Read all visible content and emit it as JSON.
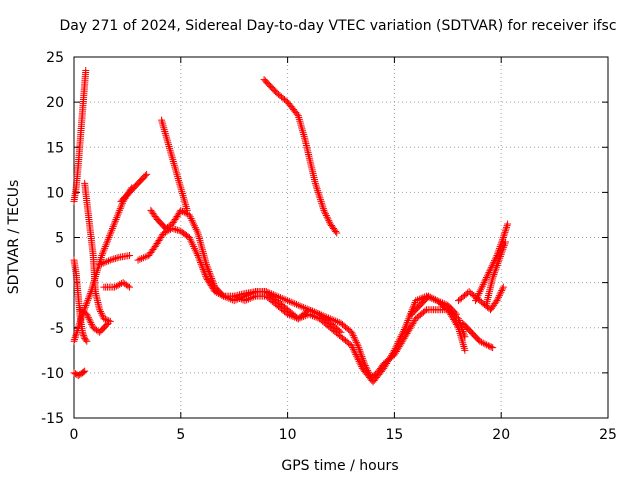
{
  "chart_data": {
    "type": "scatter",
    "title": "Day 271 of 2024, Sidereal Day-to-day VTEC variation (SDTVAR) for receiver ifsc",
    "xlabel": "GPS time / hours",
    "ylabel": "SDTVAR / TECUs",
    "xlim": [
      0,
      25
    ],
    "ylim": [
      -15,
      25
    ],
    "xticks": [
      "0",
      "5",
      "10",
      "15",
      "20",
      "25"
    ],
    "yticks": [
      "-15",
      "-10",
      "-5",
      "0",
      "5",
      "10",
      "15",
      "20",
      "25"
    ],
    "grid": true,
    "marker": "+",
    "series_color": "#ff0000",
    "tracks": [
      [
        [
          0.0,
          9.0
        ],
        [
          0.1,
          10.5
        ],
        [
          0.2,
          13.0
        ],
        [
          0.3,
          16.0
        ],
        [
          0.4,
          19.0
        ],
        [
          0.5,
          22.0
        ],
        [
          0.55,
          23.5
        ]
      ],
      [
        [
          0.0,
          2.5
        ],
        [
          0.1,
          1.0
        ],
        [
          0.2,
          -1.5
        ],
        [
          0.3,
          -4.0
        ],
        [
          0.4,
          -5.5
        ],
        [
          0.5,
          -6.2
        ],
        [
          0.6,
          -6.5
        ]
      ],
      [
        [
          0.0,
          -10.0
        ],
        [
          0.2,
          -10.3
        ],
        [
          0.4,
          -10.0
        ],
        [
          0.5,
          -9.8
        ]
      ],
      [
        [
          0.5,
          11.0
        ],
        [
          0.7,
          7.0
        ],
        [
          0.9,
          3.0
        ],
        [
          1.0,
          -1.0
        ],
        [
          1.2,
          -3.0
        ],
        [
          1.4,
          -4.0
        ],
        [
          1.7,
          -4.3
        ]
      ],
      [
        [
          0.0,
          -6.5
        ],
        [
          0.4,
          -3.5
        ],
        [
          0.8,
          -1.0
        ],
        [
          1.3,
          3.0
        ],
        [
          1.8,
          6.0
        ],
        [
          2.3,
          9.0
        ],
        [
          2.7,
          10.5
        ]
      ],
      [
        [
          0.3,
          -3.0
        ],
        [
          0.6,
          -3.5
        ],
        [
          0.9,
          -5.0
        ],
        [
          1.2,
          -5.5
        ],
        [
          1.6,
          -4.5
        ]
      ],
      [
        [
          1.2,
          2.0
        ],
        [
          1.7,
          2.5
        ],
        [
          2.1,
          2.8
        ],
        [
          2.6,
          3.0
        ]
      ],
      [
        [
          1.4,
          -0.5
        ],
        [
          1.9,
          -0.5
        ],
        [
          2.3,
          0.0
        ],
        [
          2.6,
          -0.5
        ]
      ],
      [
        [
          2.2,
          9.0
        ],
        [
          2.6,
          10.0
        ],
        [
          3.0,
          11.0
        ],
        [
          3.4,
          12.0
        ]
      ],
      [
        [
          3.0,
          2.5
        ],
        [
          3.5,
          3.0
        ],
        [
          3.8,
          4.0
        ],
        [
          4.2,
          5.5
        ],
        [
          4.6,
          6.0
        ],
        [
          5.0,
          5.7
        ],
        [
          5.4,
          5.0
        ],
        [
          5.8,
          3.0
        ],
        [
          6.2,
          0.5
        ],
        [
          6.6,
          -1.0
        ],
        [
          7.0,
          -1.5
        ],
        [
          7.5,
          -1.5
        ],
        [
          8.0,
          -1.2
        ],
        [
          8.5,
          -1.0
        ],
        [
          9.0,
          -1.0
        ],
        [
          9.5,
          -1.5
        ],
        [
          10.0,
          -2.0
        ],
        [
          10.5,
          -2.5
        ],
        [
          11.0,
          -3.0
        ],
        [
          11.5,
          -3.5
        ],
        [
          12.0,
          -4.0
        ],
        [
          12.5,
          -4.5
        ],
        [
          13.0,
          -5.5
        ],
        [
          13.3,
          -7.0
        ],
        [
          13.6,
          -9.0
        ],
        [
          13.9,
          -10.5
        ],
        [
          14.2,
          -10.0
        ],
        [
          14.5,
          -9.0
        ],
        [
          15.0,
          -8.0
        ],
        [
          15.5,
          -6.0
        ],
        [
          16.0,
          -4.0
        ],
        [
          16.5,
          -3.0
        ],
        [
          17.0,
          -3.0
        ],
        [
          17.5,
          -3.0
        ],
        [
          18.0,
          -4.0
        ],
        [
          18.3,
          -6.0
        ]
      ],
      [
        [
          3.6,
          8.0
        ],
        [
          3.9,
          7.0
        ],
        [
          4.3,
          6.0
        ],
        [
          4.6,
          6.5
        ],
        [
          5.0,
          8.0
        ],
        [
          5.4,
          7.5
        ],
        [
          5.8,
          5.5
        ],
        [
          6.2,
          2.0
        ],
        [
          6.6,
          -0.5
        ],
        [
          7.0,
          -1.5
        ],
        [
          7.5,
          -2.0
        ],
        [
          8.0,
          -1.5
        ],
        [
          8.5,
          -1.0
        ],
        [
          9.0,
          -1.0
        ],
        [
          9.5,
          -2.0
        ],
        [
          10.0,
          -3.0
        ],
        [
          10.5,
          -4.0
        ],
        [
          11.0,
          -3.5
        ],
        [
          11.5,
          -4.0
        ],
        [
          12.0,
          -5.0
        ],
        [
          12.5,
          -6.0
        ],
        [
          13.0,
          -7.0
        ],
        [
          13.5,
          -9.5
        ],
        [
          14.0,
          -11.0
        ],
        [
          14.5,
          -9.5
        ],
        [
          15.0,
          -7.5
        ],
        [
          15.5,
          -5.0
        ],
        [
          16.0,
          -2.0
        ],
        [
          16.5,
          -1.5
        ],
        [
          17.0,
          -2.0
        ],
        [
          17.5,
          -3.0
        ],
        [
          18.0,
          -5.0
        ],
        [
          18.3,
          -7.5
        ]
      ],
      [
        [
          4.1,
          18.0
        ],
        [
          4.4,
          15.5
        ],
        [
          4.7,
          13.0
        ],
        [
          5.0,
          10.5
        ],
        [
          5.3,
          8.0
        ]
      ],
      [
        [
          8.9,
          22.5
        ],
        [
          9.5,
          21.0
        ],
        [
          10.0,
          20.0
        ],
        [
          10.5,
          18.5
        ],
        [
          10.8,
          16.0
        ],
        [
          11.0,
          14.0
        ],
        [
          11.3,
          11.0
        ],
        [
          11.7,
          8.0
        ],
        [
          12.0,
          6.5
        ],
        [
          12.3,
          5.5
        ]
      ],
      [
        [
          7.5,
          -1.5
        ],
        [
          8.0,
          -2.0
        ],
        [
          8.5,
          -1.5
        ],
        [
          9.0,
          -1.5
        ],
        [
          9.5,
          -2.5
        ],
        [
          10.0,
          -3.5
        ],
        [
          10.5,
          -4.0
        ],
        [
          11.0,
          -3.0
        ],
        [
          11.5,
          -3.5
        ],
        [
          12.0,
          -4.5
        ],
        [
          12.5,
          -5.5
        ]
      ],
      [
        [
          15.8,
          -3.5
        ],
        [
          16.2,
          -2.5
        ],
        [
          16.6,
          -1.5
        ],
        [
          17.0,
          -2.0
        ],
        [
          17.5,
          -2.5
        ],
        [
          17.9,
          -3.5
        ]
      ],
      [
        [
          18.0,
          -2.0
        ],
        [
          18.5,
          -1.0
        ],
        [
          19.0,
          -2.0
        ],
        [
          19.5,
          -3.0
        ],
        [
          19.8,
          -2.0
        ],
        [
          20.1,
          -0.5
        ]
      ],
      [
        [
          18.8,
          -2.0
        ],
        [
          19.2,
          0.0
        ],
        [
          19.5,
          1.5
        ],
        [
          19.8,
          3.0
        ],
        [
          20.1,
          5.0
        ],
        [
          20.3,
          6.5
        ]
      ],
      [
        [
          19.3,
          -2.5
        ],
        [
          19.6,
          0.5
        ],
        [
          19.9,
          2.5
        ],
        [
          20.2,
          4.5
        ]
      ],
      [
        [
          18.2,
          -4.5
        ],
        [
          18.6,
          -5.5
        ],
        [
          19.0,
          -6.5
        ],
        [
          19.4,
          -7.0
        ],
        [
          19.6,
          -7.2
        ]
      ]
    ]
  }
}
